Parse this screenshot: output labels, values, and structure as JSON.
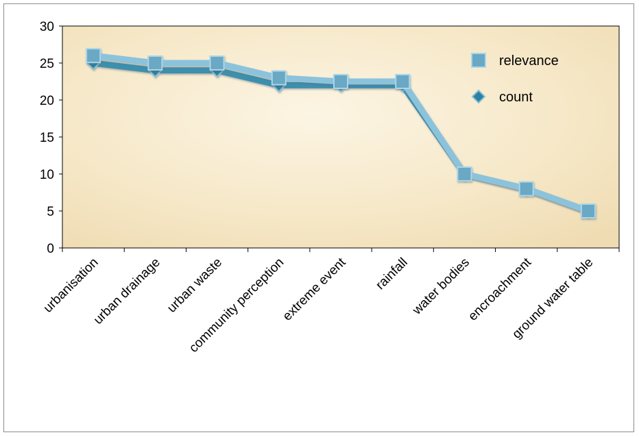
{
  "chart_data": {
    "type": "line",
    "categories": [
      "urbanisation",
      "urban drainage",
      "urban waste",
      "community perception",
      "extreme event",
      "rainfall",
      "water bodies",
      "encroachment",
      "ground water table"
    ],
    "series": [
      {
        "name": "relevance",
        "values": [
          26,
          25,
          25,
          23,
          22.5,
          22.5,
          10,
          8,
          5
        ],
        "color": "#8cc3dc",
        "marker": "square"
      },
      {
        "name": "count",
        "values": [
          25,
          24,
          24,
          22,
          22,
          22,
          10,
          8,
          5
        ],
        "color": "#3d8fae",
        "marker": "diamond"
      }
    ],
    "title": "",
    "xlabel": "",
    "ylabel": "",
    "ylim": [
      0,
      30
    ],
    "yticks": [
      0,
      5,
      10,
      15,
      20,
      25,
      30
    ],
    "grid": false,
    "legend_position": "top-right",
    "plot_background": "#f8ecd0"
  }
}
